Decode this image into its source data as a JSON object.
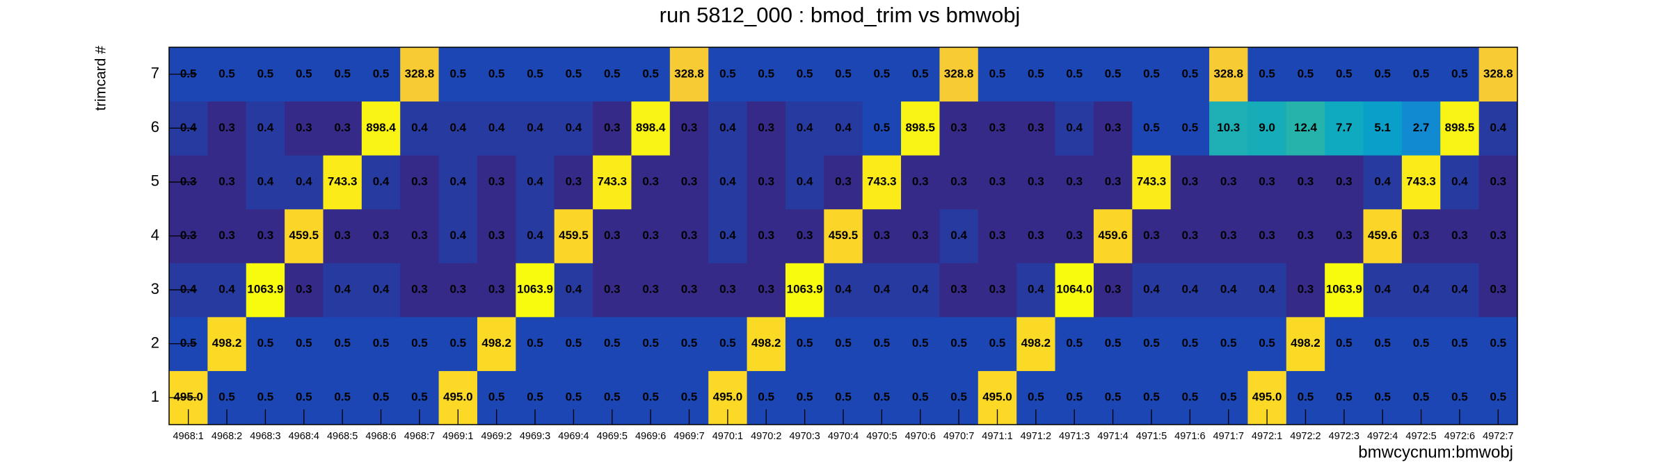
{
  "chart_data": {
    "type": "heatmap",
    "title": "run 5812_000 : bmod_trim vs bmwobj",
    "x_label": "bmwcycnum:bmwobj",
    "y_label": "trimcard #",
    "categories": [
      "4968:1",
      "4968:2",
      "4968:3",
      "4968:4",
      "4968:5",
      "4968:6",
      "4968:7",
      "4969:1",
      "4969:2",
      "4969:3",
      "4969:4",
      "4969:5",
      "4969:6",
      "4969:7",
      "4970:1",
      "4970:2",
      "4970:3",
      "4970:4",
      "4970:5",
      "4970:6",
      "4970:7",
      "4971:1",
      "4971:2",
      "4971:3",
      "4971:4",
      "4971:5",
      "4971:6",
      "4971:7",
      "4972:1",
      "4972:2",
      "4972:3",
      "4972:4",
      "4972:5",
      "4972:6",
      "4972:7"
    ],
    "y_categories": [
      "1",
      "2",
      "3",
      "4",
      "5",
      "6",
      "7"
    ],
    "log_z": true,
    "palette": [
      "#352a87",
      "#0363e1",
      "#1485d4",
      "#06a7c6",
      "#38b99e",
      "#92bf73",
      "#d9ba56",
      "#fcce2e",
      "#f9fb0e"
    ],
    "values": [
      [
        495.0,
        0.5,
        0.5,
        0.5,
        0.5,
        0.5,
        0.5,
        495.0,
        0.5,
        0.5,
        0.5,
        0.5,
        0.5,
        0.5,
        495.0,
        0.5,
        0.5,
        0.5,
        0.5,
        0.5,
        0.5,
        495.0,
        0.5,
        0.5,
        0.5,
        0.5,
        0.5,
        0.5,
        495.0,
        0.5,
        0.5,
        0.5,
        0.5,
        0.5,
        0.5
      ],
      [
        0.5,
        498.2,
        0.5,
        0.5,
        0.5,
        0.5,
        0.5,
        0.5,
        498.2,
        0.5,
        0.5,
        0.5,
        0.5,
        0.5,
        0.5,
        498.2,
        0.5,
        0.5,
        0.5,
        0.5,
        0.5,
        0.5,
        498.2,
        0.5,
        0.5,
        0.5,
        0.5,
        0.5,
        0.5,
        498.2,
        0.5,
        0.5,
        0.5,
        0.5,
        0.5
      ],
      [
        0.4,
        0.4,
        1063.9,
        0.3,
        0.4,
        0.4,
        0.3,
        0.3,
        0.3,
        1063.9,
        0.4,
        0.3,
        0.3,
        0.3,
        0.3,
        0.3,
        1063.9,
        0.4,
        0.4,
        0.4,
        0.3,
        0.3,
        0.4,
        1064.0,
        0.3,
        0.4,
        0.4,
        0.4,
        0.4,
        0.3,
        1063.9,
        0.4,
        0.4,
        0.4,
        0.3
      ],
      [
        0.3,
        0.3,
        0.3,
        459.5,
        0.3,
        0.3,
        0.3,
        0.4,
        0.3,
        0.4,
        459.5,
        0.3,
        0.3,
        0.3,
        0.4,
        0.3,
        0.3,
        459.5,
        0.3,
        0.3,
        0.4,
        0.3,
        0.3,
        0.3,
        459.6,
        0.3,
        0.3,
        0.3,
        0.3,
        0.3,
        0.3,
        459.6,
        0.3,
        0.3,
        0.3
      ],
      [
        0.3,
        0.3,
        0.4,
        0.4,
        743.3,
        0.4,
        0.3,
        0.4,
        0.3,
        0.4,
        0.3,
        743.3,
        0.3,
        0.3,
        0.4,
        0.3,
        0.4,
        0.3,
        743.3,
        0.3,
        0.3,
        0.3,
        0.3,
        0.3,
        0.3,
        743.3,
        0.3,
        0.3,
        0.3,
        0.3,
        0.3,
        0.4,
        743.3,
        0.4,
        0.3
      ],
      [
        0.4,
        0.3,
        0.4,
        0.3,
        0.3,
        898.4,
        0.4,
        0.4,
        0.4,
        0.4,
        0.4,
        0.3,
        898.4,
        0.3,
        0.4,
        0.3,
        0.4,
        0.4,
        0.5,
        898.5,
        0.3,
        0.3,
        0.3,
        0.4,
        0.3,
        0.5,
        0.5,
        10.3,
        9.0,
        12.4,
        7.7,
        5.1,
        2.7,
        898.5,
        0.4
      ],
      [
        0.5,
        0.5,
        0.5,
        0.5,
        0.5,
        0.5,
        328.8,
        0.5,
        0.5,
        0.5,
        0.5,
        0.5,
        0.5,
        328.8,
        0.5,
        0.5,
        0.5,
        0.5,
        0.5,
        0.5,
        328.8,
        0.5,
        0.5,
        0.5,
        0.5,
        0.5,
        0.5,
        328.8,
        0.5,
        0.5,
        0.5,
        0.5,
        0.5,
        0.5,
        328.8
      ]
    ],
    "value_labels": [
      [
        "495.0",
        "0.5",
        "0.5",
        "0.5",
        "0.5",
        "0.5",
        "0.5",
        "495.0",
        "0.5",
        "0.5",
        "0.5",
        "0.5",
        "0.5",
        "0.5",
        "495.0",
        "0.5",
        "0.5",
        "0.5",
        "0.5",
        "0.5",
        "0.5",
        "495.0",
        "0.5",
        "0.5",
        "0.5",
        "0.5",
        "0.5",
        "0.5",
        "495.0",
        "0.5",
        "0.5",
        "0.5",
        "0.5",
        "0.5",
        "0.5"
      ],
      [
        "0.5",
        "498.2",
        "0.5",
        "0.5",
        "0.5",
        "0.5",
        "0.5",
        "0.5",
        "498.2",
        "0.5",
        "0.5",
        "0.5",
        "0.5",
        "0.5",
        "0.5",
        "498.2",
        "0.5",
        "0.5",
        "0.5",
        "0.5",
        "0.5",
        "0.5",
        "498.2",
        "0.5",
        "0.5",
        "0.5",
        "0.5",
        "0.5",
        "0.5",
        "498.2",
        "0.5",
        "0.5",
        "0.5",
        "0.5",
        "0.5"
      ],
      [
        "0.4",
        "0.4",
        "1063.9",
        "0.3",
        "0.4",
        "0.4",
        "0.3",
        "0.3",
        "0.3",
        "1063.9",
        "0.4",
        "0.3",
        "0.3",
        "0.3",
        "0.3",
        "0.3",
        "1063.9",
        "0.4",
        "0.4",
        "0.4",
        "0.3",
        "0.3",
        "0.4",
        "1064.0",
        "0.3",
        "0.4",
        "0.4",
        "0.4",
        "0.4",
        "0.3",
        "1063.9",
        "0.4",
        "0.4",
        "0.4",
        "0.3"
      ],
      [
        "0.3",
        "0.3",
        "0.3",
        "459.5",
        "0.3",
        "0.3",
        "0.3",
        "0.4",
        "0.3",
        "0.4",
        "459.5",
        "0.3",
        "0.3",
        "0.3",
        "0.4",
        "0.3",
        "0.3",
        "459.5",
        "0.3",
        "0.3",
        "0.4",
        "0.3",
        "0.3",
        "0.3",
        "459.6",
        "0.3",
        "0.3",
        "0.3",
        "0.3",
        "0.3",
        "0.3",
        "459.6",
        "0.3",
        "0.3",
        "0.3"
      ],
      [
        "0.3",
        "0.3",
        "0.4",
        "0.4",
        "743.3",
        "0.4",
        "0.3",
        "0.4",
        "0.3",
        "0.4",
        "0.3",
        "743.3",
        "0.3",
        "0.3",
        "0.4",
        "0.3",
        "0.4",
        "0.3",
        "743.3",
        "0.3",
        "0.3",
        "0.3",
        "0.3",
        "0.3",
        "0.3",
        "743.3",
        "0.3",
        "0.3",
        "0.3",
        "0.3",
        "0.3",
        "0.4",
        "743.3",
        "0.4",
        "0.3"
      ],
      [
        "0.4",
        "0.3",
        "0.4",
        "0.3",
        "0.3",
        "898.4",
        "0.4",
        "0.4",
        "0.4",
        "0.4",
        "0.4",
        "0.3",
        "898.4",
        "0.3",
        "0.4",
        "0.3",
        "0.4",
        "0.4",
        "0.5",
        "898.5",
        "0.3",
        "0.3",
        "0.3",
        "0.4",
        "0.3",
        "0.5",
        "0.5",
        "10.3",
        "9.0",
        "12.4",
        "7.7",
        "5.1",
        "2.7",
        "898.5",
        "0.4"
      ],
      [
        "0.5",
        "0.5",
        "0.5",
        "0.5",
        "0.5",
        "0.5",
        "328.8",
        "0.5",
        "0.5",
        "0.5",
        "0.5",
        "0.5",
        "0.5",
        "328.8",
        "0.5",
        "0.5",
        "0.5",
        "0.5",
        "0.5",
        "0.5",
        "328.8",
        "0.5",
        "0.5",
        "0.5",
        "0.5",
        "0.5",
        "0.5",
        "328.8",
        "0.5",
        "0.5",
        "0.5",
        "0.5",
        "0.5",
        "0.5",
        "328.8"
      ]
    ]
  }
}
